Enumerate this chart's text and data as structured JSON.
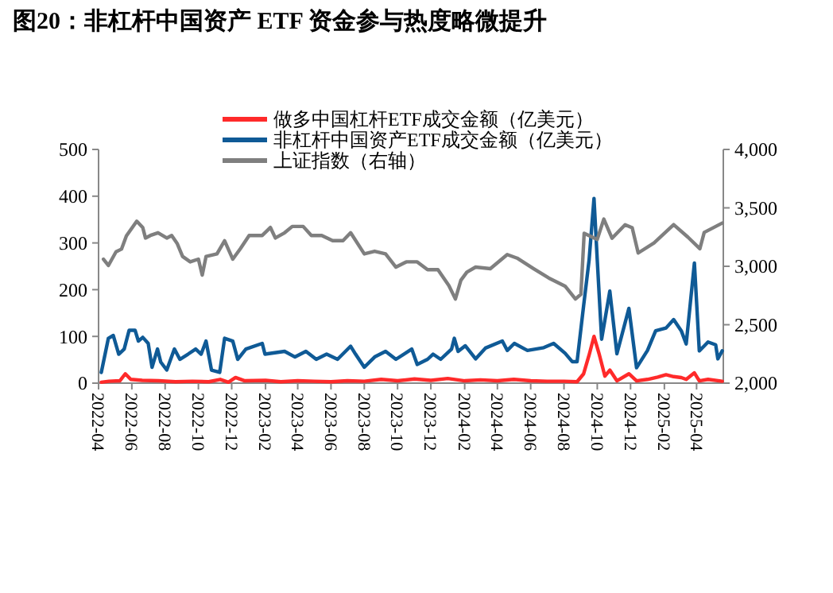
{
  "chart_data": {
    "type": "line",
    "title": "图20：非杠杆中国资产 ETF 资金参与热度略微提升",
    "legend": "top",
    "grid": false,
    "marker": "none",
    "line_style": "solid",
    "xlim": [
      "2022-04-01",
      "2025-05-20"
    ],
    "xticks": [
      "2022-04",
      "2022-06",
      "2022-08",
      "2022-10",
      "2022-12",
      "2023-02",
      "2023-04",
      "2023-06",
      "2023-08",
      "2023-10",
      "2023-12",
      "2024-02",
      "2024-04",
      "2024-06",
      "2024-08",
      "2024-10",
      "2024-12",
      "2025-02",
      "2025-04"
    ],
    "ylim": [
      0,
      500
    ],
    "yticks": [
      0,
      100,
      200,
      300,
      400,
      500
    ],
    "y2lim": [
      2000,
      4000
    ],
    "y2ticks": [
      {
        "value": 2000,
        "label": "2,000"
      },
      {
        "value": 2500,
        "label": "2,500"
      },
      {
        "value": 3000,
        "label": "3,000"
      },
      {
        "value": 3500,
        "label": "3,500"
      },
      {
        "value": 4000,
        "label": "4,000"
      }
    ],
    "series": [
      {
        "name": "做多中国杠杆ETF成交金额（亿美元）",
        "color": "#ff2a2a",
        "x": [
          "2022-04-06",
          "2022-04-20",
          "2022-05-10",
          "2022-05-20",
          "2022-05-30",
          "2022-06-20",
          "2022-07-20",
          "2022-08-20",
          "2022-09-20",
          "2022-10-20",
          "2022-11-10",
          "2022-11-25",
          "2022-12-08",
          "2022-12-25",
          "2023-02-01",
          "2023-03-01",
          "2023-04-01",
          "2023-05-01",
          "2023-06-01",
          "2023-07-01",
          "2023-08-01",
          "2023-09-01",
          "2023-10-01",
          "2023-11-01",
          "2023-12-01",
          "2024-01-01",
          "2024-02-01",
          "2024-03-01",
          "2024-04-01",
          "2024-05-01",
          "2024-06-01",
          "2024-07-01",
          "2024-08-01",
          "2024-08-25",
          "2024-09-06",
          "2024-09-16",
          "2024-09-25",
          "2024-10-05",
          "2024-10-15",
          "2024-10-24",
          "2024-11-06",
          "2024-11-28",
          "2024-12-12",
          "2025-01-01",
          "2025-01-20",
          "2025-02-04",
          "2025-02-18",
          "2025-03-04",
          "2025-03-13",
          "2025-03-28",
          "2025-04-06",
          "2025-04-22",
          "2025-05-18"
        ],
        "values": [
          2,
          4,
          5,
          20,
          8,
          6,
          5,
          3,
          4,
          3,
          8,
          2,
          12,
          5,
          6,
          3,
          5,
          4,
          3,
          5,
          4,
          8,
          5,
          9,
          6,
          10,
          5,
          7,
          5,
          8,
          5,
          4,
          4,
          3,
          20,
          60,
          100,
          60,
          15,
          28,
          5,
          20,
          5,
          8,
          13,
          18,
          14,
          12,
          8,
          22,
          5,
          8,
          4
        ]
      },
      {
        "name": "非杠杆中国资产ETF成交金额（亿美元）",
        "color": "#0f5a96",
        "x": [
          "2022-04-06",
          "2022-04-19",
          "2022-04-28",
          "2022-05-08",
          "2022-05-18",
          "2022-05-27",
          "2022-06-07",
          "2022-06-13",
          "2022-06-21",
          "2022-07-01",
          "2022-07-08",
          "2022-07-18",
          "2022-07-24",
          "2022-08-04",
          "2022-08-18",
          "2022-08-28",
          "2022-09-12",
          "2022-09-26",
          "2022-10-06",
          "2022-10-15",
          "2022-10-25",
          "2022-11-09",
          "2022-11-18",
          "2022-12-03",
          "2022-12-12",
          "2022-12-27",
          "2023-01-26",
          "2023-01-31",
          "2023-03-08",
          "2023-03-27",
          "2023-04-16",
          "2023-05-05",
          "2023-05-24",
          "2023-06-13",
          "2023-07-07",
          "2023-07-16",
          "2023-08-01",
          "2023-08-20",
          "2023-09-09",
          "2023-09-28",
          "2023-10-27",
          "2023-11-06",
          "2023-11-25",
          "2023-12-05",
          "2023-12-19",
          "2024-01-08",
          "2024-01-13",
          "2024-01-20",
          "2024-02-02",
          "2024-02-21",
          "2024-03-10",
          "2024-04-10",
          "2024-04-19",
          "2024-05-02",
          "2024-05-26",
          "2024-06-25",
          "2024-07-13",
          "2024-08-03",
          "2024-08-16",
          "2024-08-25",
          "2024-09-06",
          "2024-09-16",
          "2024-09-25",
          "2024-10-01",
          "2024-10-09",
          "2024-10-24",
          "2024-11-06",
          "2024-11-28",
          "2024-12-12",
          "2025-01-01",
          "2025-01-16",
          "2025-02-04",
          "2025-02-18",
          "2025-03-04",
          "2025-03-13",
          "2025-03-28",
          "2025-04-06",
          "2025-04-22",
          "2025-05-06",
          "2025-05-10",
          "2025-05-18"
        ],
        "values": [
          23,
          96,
          102,
          62,
          73,
          113,
          113,
          90,
          98,
          85,
          34,
          73,
          45,
          28,
          73,
          51,
          62,
          73,
          62,
          90,
          28,
          23,
          96,
          90,
          51,
          73,
          85,
          62,
          68,
          56,
          68,
          51,
          62,
          51,
          79,
          62,
          34,
          56,
          68,
          51,
          73,
          40,
          51,
          62,
          51,
          73,
          96,
          68,
          80,
          52,
          75,
          90,
          70,
          85,
          70,
          76,
          85,
          64,
          46,
          46,
          166,
          263,
          395,
          263,
          94,
          197,
          63,
          160,
          33,
          70,
          112,
          118,
          136,
          112,
          84,
          257,
          69,
          88,
          82,
          52,
          69
        ]
      },
      {
        "name": "上证指数（右轴）",
        "color": "#7f7f7f",
        "axis": "y2",
        "x": [
          "2022-04-10",
          "2022-04-19",
          "2022-05-03",
          "2022-05-13",
          "2022-05-22",
          "2022-06-10",
          "2022-06-21",
          "2022-06-26",
          "2022-07-05",
          "2022-07-19",
          "2022-08-04",
          "2022-08-13",
          "2022-08-23",
          "2022-09-02",
          "2022-09-16",
          "2022-10-01",
          "2022-10-08",
          "2022-10-15",
          "2022-11-04",
          "2022-11-18",
          "2022-12-03",
          "2022-12-17",
          "2023-01-02",
          "2023-01-26",
          "2023-02-10",
          "2023-02-19",
          "2023-03-08",
          "2023-03-22",
          "2023-04-11",
          "2023-04-26",
          "2023-05-15",
          "2023-06-04",
          "2023-06-23",
          "2023-07-07",
          "2023-08-01",
          "2023-08-20",
          "2023-09-09",
          "2023-09-28",
          "2023-10-17",
          "2023-11-06",
          "2023-11-25",
          "2023-12-14",
          "2024-01-03",
          "2024-01-15",
          "2024-01-25",
          "2024-02-05",
          "2024-02-21",
          "2024-03-19",
          "2024-04-19",
          "2024-05-07",
          "2024-06-06",
          "2024-07-04",
          "2024-08-03",
          "2024-08-22",
          "2024-09-01",
          "2024-09-07",
          "2024-10-01",
          "2024-10-13",
          "2024-10-28",
          "2024-11-21",
          "2024-12-04",
          "2024-12-15",
          "2025-01-13",
          "2025-02-18",
          "2025-03-16",
          "2025-04-07",
          "2025-04-15",
          "2025-05-18"
        ],
        "values": [
          3061,
          3007,
          3124,
          3147,
          3260,
          3386,
          3332,
          3242,
          3264,
          3287,
          3242,
          3264,
          3196,
          3084,
          3038,
          3061,
          2925,
          3084,
          3106,
          3219,
          3061,
          3151,
          3264,
          3264,
          3332,
          3242,
          3287,
          3341,
          3341,
          3264,
          3264,
          3219,
          3219,
          3287,
          3106,
          3129,
          3106,
          2993,
          3038,
          3038,
          2971,
          2971,
          2835,
          2720,
          2880,
          2950,
          2993,
          2980,
          3100,
          3070,
          2980,
          2900,
          2830,
          2720,
          2760,
          3283,
          3230,
          3404,
          3240,
          3356,
          3330,
          3114,
          3200,
          3356,
          3250,
          3150,
          3290,
          3370
        ]
      }
    ]
  }
}
